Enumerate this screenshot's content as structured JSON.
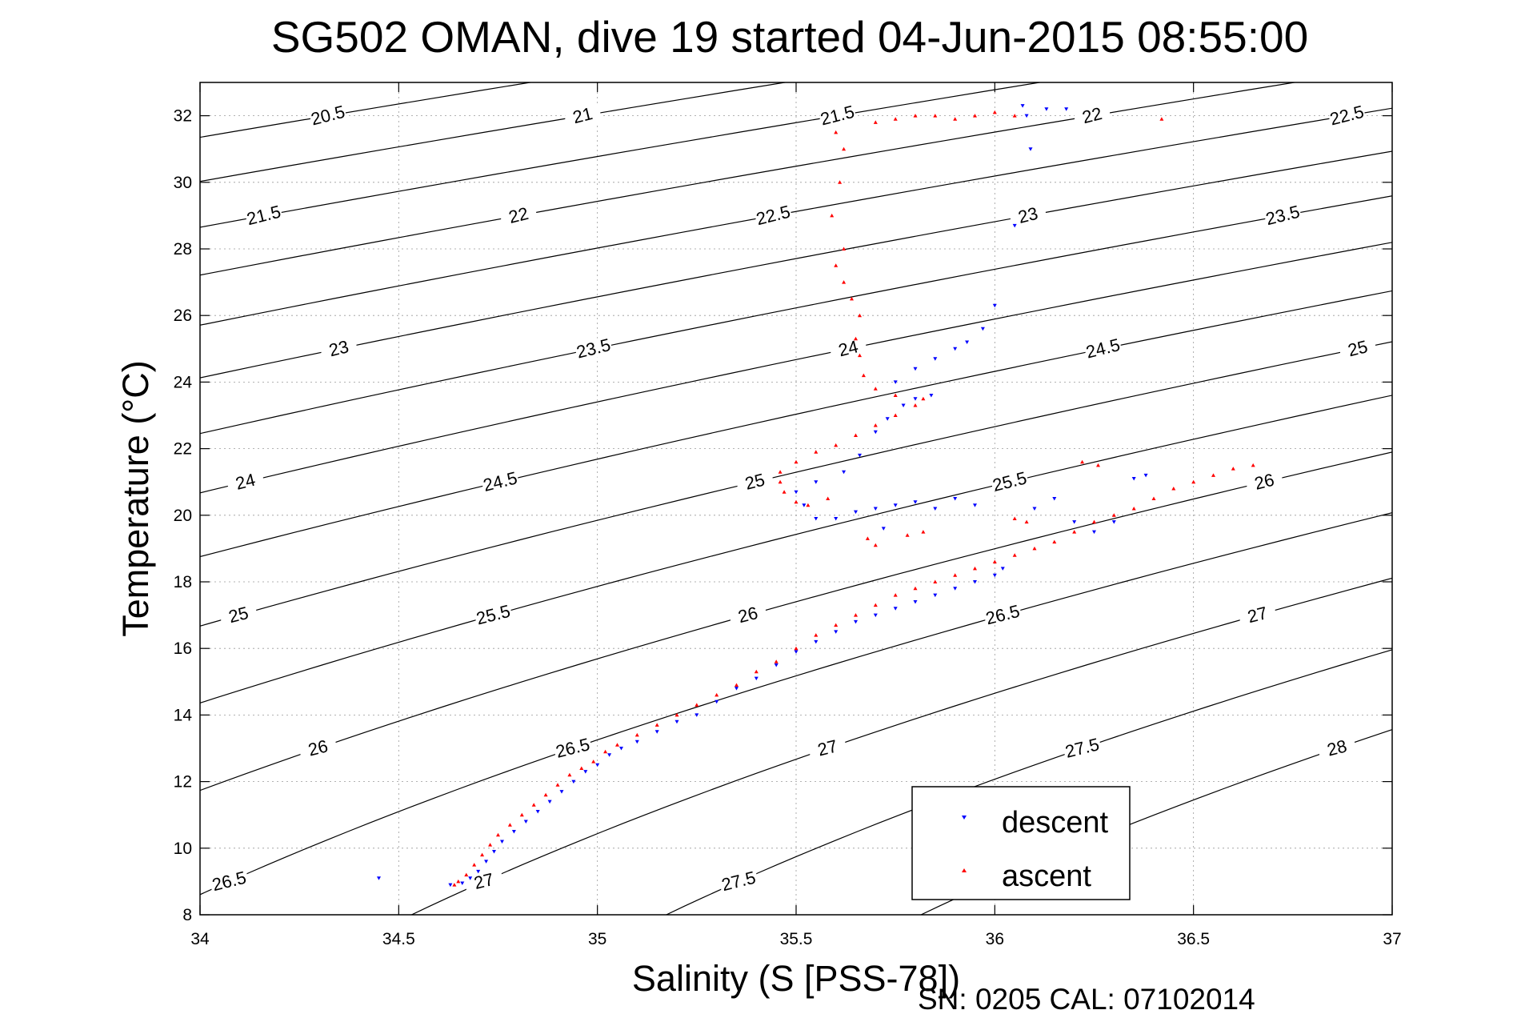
{
  "chart_data": {
    "type": "scatter",
    "title": "SG502 OMAN, dive 19 started 04-Jun-2015 08:55:00",
    "xlabel": "Salinity (S [PSS-78])",
    "ylabel": "Temperature (°C)",
    "xlim": [
      34,
      37
    ],
    "ylim": [
      8,
      33
    ],
    "x_ticks": [
      34,
      34.5,
      35,
      35.5,
      36,
      36.5,
      37
    ],
    "x_tick_labels": [
      "34",
      "34.5",
      "35",
      "35.5",
      "36",
      "36.5",
      "37"
    ],
    "y_ticks": [
      8,
      10,
      12,
      14,
      16,
      18,
      20,
      22,
      24,
      26,
      28,
      30,
      32
    ],
    "y_tick_labels": [
      "8",
      "10",
      "12",
      "14",
      "16",
      "18",
      "20",
      "22",
      "24",
      "26",
      "28",
      "30",
      "32"
    ],
    "grid": true,
    "legend_position": "bottom-right",
    "footer": "SN: 0205  CAL: 07102014",
    "density_contours": [
      "20.5",
      "21",
      "21.5",
      "22",
      "22.5",
      "23",
      "23.5",
      "24",
      "24.5",
      "25",
      "25.5",
      "26",
      "26.5",
      "27",
      "27.5",
      "28"
    ],
    "series": [
      {
        "name": "descent",
        "color": "#0000ff",
        "marker": "triangle-down",
        "points": [
          [
            34.45,
            9.1
          ],
          [
            34.63,
            8.9
          ],
          [
            34.66,
            8.95
          ],
          [
            34.68,
            9.1
          ],
          [
            34.7,
            9.3
          ],
          [
            34.72,
            9.6
          ],
          [
            34.74,
            9.9
          ],
          [
            34.76,
            10.2
          ],
          [
            34.79,
            10.5
          ],
          [
            34.82,
            10.8
          ],
          [
            34.85,
            11.1
          ],
          [
            34.88,
            11.4
          ],
          [
            34.91,
            11.7
          ],
          [
            34.94,
            12.0
          ],
          [
            34.97,
            12.3
          ],
          [
            35.0,
            12.5
          ],
          [
            35.03,
            12.8
          ],
          [
            35.06,
            13.0
          ],
          [
            35.1,
            13.2
          ],
          [
            35.15,
            13.5
          ],
          [
            35.2,
            13.8
          ],
          [
            35.25,
            14.0
          ],
          [
            35.3,
            14.4
          ],
          [
            35.35,
            14.8
          ],
          [
            35.4,
            15.1
          ],
          [
            35.45,
            15.5
          ],
          [
            35.5,
            15.9
          ],
          [
            35.55,
            16.2
          ],
          [
            35.6,
            16.5
          ],
          [
            35.65,
            16.8
          ],
          [
            35.7,
            17.0
          ],
          [
            35.75,
            17.2
          ],
          [
            35.8,
            17.4
          ],
          [
            35.85,
            17.6
          ],
          [
            35.9,
            17.8
          ],
          [
            35.95,
            18.0
          ],
          [
            36.0,
            18.2
          ],
          [
            36.02,
            18.4
          ],
          [
            35.5,
            20.7
          ],
          [
            35.52,
            20.3
          ],
          [
            35.55,
            19.9
          ],
          [
            35.6,
            19.9
          ],
          [
            35.65,
            20.1
          ],
          [
            35.7,
            20.2
          ],
          [
            35.75,
            20.3
          ],
          [
            35.8,
            20.4
          ],
          [
            35.85,
            20.2
          ],
          [
            35.9,
            20.5
          ],
          [
            35.95,
            20.3
          ],
          [
            35.72,
            19.6
          ],
          [
            36.1,
            20.2
          ],
          [
            36.15,
            20.5
          ],
          [
            36.2,
            19.8
          ],
          [
            36.25,
            19.5
          ],
          [
            36.3,
            19.8
          ],
          [
            36.35,
            21.1
          ],
          [
            36.38,
            21.2
          ],
          [
            35.55,
            21.0
          ],
          [
            35.62,
            21.3
          ],
          [
            35.66,
            21.8
          ],
          [
            35.7,
            22.5
          ],
          [
            35.73,
            22.9
          ],
          [
            35.77,
            23.3
          ],
          [
            35.8,
            23.5
          ],
          [
            35.84,
            23.6
          ],
          [
            35.75,
            24.0
          ],
          [
            35.8,
            24.4
          ],
          [
            35.85,
            24.7
          ],
          [
            35.9,
            25.0
          ],
          [
            35.93,
            25.2
          ],
          [
            35.97,
            25.6
          ],
          [
            36.0,
            26.3
          ],
          [
            36.05,
            28.7
          ],
          [
            36.07,
            32.3
          ],
          [
            36.09,
            31.0
          ],
          [
            36.13,
            32.2
          ],
          [
            36.18,
            32.2
          ],
          [
            36.08,
            32.0
          ]
        ]
      },
      {
        "name": "ascent",
        "color": "#ff0000",
        "marker": "triangle-up",
        "points": [
          [
            34.64,
            8.9
          ],
          [
            34.65,
            9.0
          ],
          [
            34.67,
            9.2
          ],
          [
            34.69,
            9.5
          ],
          [
            34.71,
            9.8
          ],
          [
            34.73,
            10.1
          ],
          [
            34.75,
            10.4
          ],
          [
            34.78,
            10.7
          ],
          [
            34.81,
            11.0
          ],
          [
            34.84,
            11.3
          ],
          [
            34.87,
            11.6
          ],
          [
            34.9,
            11.9
          ],
          [
            34.93,
            12.2
          ],
          [
            34.96,
            12.4
          ],
          [
            34.99,
            12.6
          ],
          [
            35.02,
            12.9
          ],
          [
            35.05,
            13.1
          ],
          [
            35.1,
            13.4
          ],
          [
            35.15,
            13.7
          ],
          [
            35.2,
            14.0
          ],
          [
            35.25,
            14.3
          ],
          [
            35.3,
            14.6
          ],
          [
            35.35,
            14.9
          ],
          [
            35.4,
            15.3
          ],
          [
            35.45,
            15.6
          ],
          [
            35.5,
            16.0
          ],
          [
            35.55,
            16.4
          ],
          [
            35.6,
            16.7
          ],
          [
            35.65,
            17.0
          ],
          [
            35.7,
            17.3
          ],
          [
            35.75,
            17.6
          ],
          [
            35.8,
            17.8
          ],
          [
            35.85,
            18.0
          ],
          [
            35.9,
            18.2
          ],
          [
            35.95,
            18.4
          ],
          [
            36.0,
            18.6
          ],
          [
            36.05,
            18.8
          ],
          [
            36.1,
            19.0
          ],
          [
            36.15,
            19.2
          ],
          [
            36.2,
            19.5
          ],
          [
            36.25,
            19.8
          ],
          [
            36.3,
            20.0
          ],
          [
            36.35,
            20.2
          ],
          [
            36.4,
            20.5
          ],
          [
            36.45,
            20.8
          ],
          [
            36.5,
            21.0
          ],
          [
            36.55,
            21.2
          ],
          [
            36.6,
            21.4
          ],
          [
            36.65,
            21.5
          ],
          [
            35.5,
            20.4
          ],
          [
            35.47,
            20.7
          ],
          [
            35.46,
            21.0
          ],
          [
            35.46,
            21.3
          ],
          [
            35.5,
            21.6
          ],
          [
            35.55,
            21.9
          ],
          [
            35.6,
            22.1
          ],
          [
            35.65,
            22.4
          ],
          [
            35.7,
            22.7
          ],
          [
            35.75,
            23.0
          ],
          [
            35.8,
            23.3
          ],
          [
            35.82,
            23.5
          ],
          [
            35.75,
            23.6
          ],
          [
            35.7,
            23.8
          ],
          [
            35.67,
            24.2
          ],
          [
            35.66,
            24.8
          ],
          [
            35.65,
            25.3
          ],
          [
            35.66,
            26.0
          ],
          [
            35.64,
            26.5
          ],
          [
            35.62,
            27.0
          ],
          [
            35.6,
            27.5
          ],
          [
            35.62,
            28.0
          ],
          [
            35.59,
            29.0
          ],
          [
            35.61,
            30.0
          ],
          [
            35.62,
            31.0
          ],
          [
            35.6,
            31.5
          ],
          [
            35.7,
            31.8
          ],
          [
            35.75,
            31.9
          ],
          [
            35.8,
            32.0
          ],
          [
            35.85,
            32.0
          ],
          [
            35.9,
            31.9
          ],
          [
            35.95,
            32.0
          ],
          [
            36.0,
            32.1
          ],
          [
            36.05,
            32.0
          ],
          [
            36.42,
            31.9
          ],
          [
            35.68,
            19.3
          ],
          [
            35.7,
            19.1
          ],
          [
            35.78,
            19.4
          ],
          [
            35.82,
            19.5
          ],
          [
            36.05,
            19.9
          ],
          [
            36.08,
            19.8
          ],
          [
            36.22,
            21.6
          ],
          [
            36.26,
            21.5
          ],
          [
            35.58,
            20.5
          ],
          [
            35.53,
            20.3
          ]
        ]
      }
    ]
  },
  "legend": {
    "descent_label": "descent",
    "ascent_label": "ascent"
  }
}
